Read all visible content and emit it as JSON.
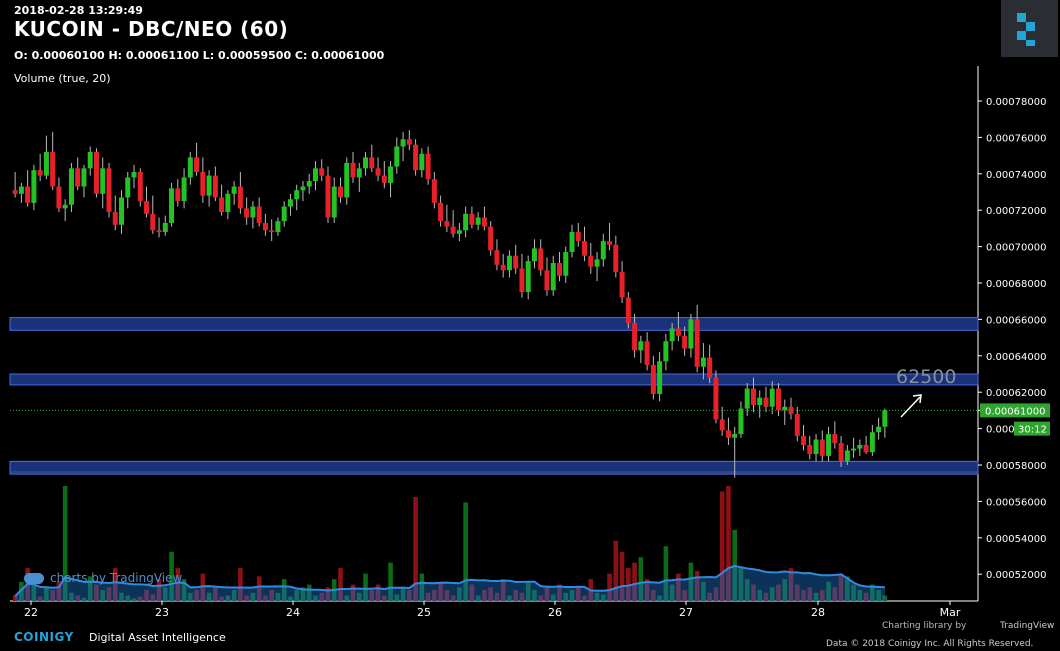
{
  "header": {
    "timestamp": "2018-02-28 13:29:49",
    "title": "KUCOIN - DBC/NEO (60)",
    "ohlc": "O: 0.00060100 H: 0.00061100 L: 0.00059500 C: 0.00061000",
    "volume_label": "Volume (true, 20)"
  },
  "watermark": "charts by TradingView",
  "footer": {
    "brand": "COINIGY",
    "tagline": "Digital Asset Intelligence",
    "charting_library": "Charting library by",
    "tradingview": "TradingView",
    "copyright": "Data © 2018  Coinigy Inc. All Rights Reserved."
  },
  "colors": {
    "up": "#22c322",
    "down": "#e8202a",
    "band": "#1f3b8f",
    "volume_ma": "#1c6fc4",
    "last_price_tag": "#2fa52f"
  },
  "icons": {
    "brand_logo": "coinigy-logo-icon",
    "arrow": "arrow-up-right-icon"
  },
  "chart_data": {
    "type": "candlestick",
    "y_ticks": [
      "0.00078000",
      "0.00076000",
      "0.00074000",
      "0.00072000",
      "0.00070000",
      "0.00068000",
      "0.00066000",
      "0.00064000",
      "0.00062000",
      "0.00061000",
      "0.00060000",
      "0.00058000",
      "0.00056000",
      "0.00054000",
      "0.00052000"
    ],
    "x_ticks": [
      "22",
      "23",
      "24",
      "25",
      "26",
      "27",
      "28",
      "Mar"
    ],
    "last_price": "0.00061000",
    "countdown": "30:12",
    "annotation": "62500",
    "price_range": [
      0.00051,
      0.000793
    ],
    "zones": [
      {
        "low": 0.000654,
        "high": 0.000661
      },
      {
        "low": 0.000624,
        "high": 0.00063
      },
      {
        "low": 0.000575,
        "high": 0.000582
      }
    ],
    "candles": [
      [
        0.000731,
        0.000741,
        0.000727,
        0.000729
      ],
      [
        0.000729,
        0.000735,
        0.000724,
        0.000733
      ],
      [
        0.000733,
        0.000742,
        0.000722,
        0.000724
      ],
      [
        0.000724,
        0.000745,
        0.00072,
        0.000742
      ],
      [
        0.000742,
        0.000751,
        0.000736,
        0.000739
      ],
      [
        0.000739,
        0.000761,
        0.000737,
        0.000752
      ],
      [
        0.000752,
        0.000763,
        0.000731,
        0.000733
      ],
      [
        0.000733,
        0.000738,
        0.000719,
        0.000721
      ],
      [
        0.000721,
        0.000726,
        0.000714,
        0.000723
      ],
      [
        0.000723,
        0.000746,
        0.000719,
        0.000743
      ],
      [
        0.000743,
        0.000749,
        0.000731,
        0.000733
      ],
      [
        0.000733,
        0.000745,
        0.000727,
        0.000743
      ],
      [
        0.000743,
        0.000755,
        0.000739,
        0.000752
      ],
      [
        0.000752,
        0.000754,
        0.000727,
        0.000729
      ],
      [
        0.000729,
        0.000749,
        0.000721,
        0.000743
      ],
      [
        0.000743,
        0.000746,
        0.000716,
        0.000719
      ],
      [
        0.000719,
        0.000728,
        0.000709,
        0.000712
      ],
      [
        0.000712,
        0.000731,
        0.000707,
        0.000727
      ],
      [
        0.000727,
        0.000741,
        0.000721,
        0.000738
      ],
      [
        0.000738,
        0.000745,
        0.000732,
        0.000741
      ],
      [
        0.000741,
        0.000743,
        0.000722,
        0.000725
      ],
      [
        0.000725,
        0.000733,
        0.000716,
        0.000718
      ],
      [
        0.000718,
        0.000728,
        0.000707,
        0.000709
      ],
      [
        0.000709,
        0.000716,
        0.000705,
        0.000708
      ],
      [
        0.000708,
        0.000717,
        0.000706,
        0.000713
      ],
      [
        0.000713,
        0.000735,
        0.000711,
        0.000732
      ],
      [
        0.000732,
        0.000737,
        0.000722,
        0.000725
      ],
      [
        0.000725,
        0.000743,
        0.000721,
        0.000738
      ],
      [
        0.000738,
        0.000752,
        0.000734,
        0.000749
      ],
      [
        0.000749,
        0.000757,
        0.000739,
        0.000741
      ],
      [
        0.000741,
        0.000749,
        0.000724,
        0.000728
      ],
      [
        0.000728,
        0.000742,
        0.000722,
        0.000739
      ],
      [
        0.000739,
        0.000744,
        0.000725,
        0.000727
      ],
      [
        0.000727,
        0.000734,
        0.000717,
        0.000719
      ],
      [
        0.000719,
        0.000731,
        0.000715,
        0.000729
      ],
      [
        0.000729,
        0.000736,
        0.000723,
        0.000733
      ],
      [
        0.000733,
        0.000741,
        0.000718,
        0.000721
      ],
      [
        0.000721,
        0.000727,
        0.000712,
        0.000716
      ],
      [
        0.000716,
        0.000725,
        0.00071,
        0.000722
      ],
      [
        0.000722,
        0.000727,
        0.000711,
        0.000713
      ],
      [
        0.000713,
        0.000718,
        0.000706,
        0.000709
      ],
      [
        0.000709,
        0.000715,
        0.000703,
        0.000708
      ],
      [
        0.000708,
        0.000716,
        0.000706,
        0.000714
      ],
      [
        0.000714,
        0.000725,
        0.000711,
        0.000722
      ],
      [
        0.000722,
        0.000729,
        0.000717,
        0.000726
      ],
      [
        0.000726,
        0.000734,
        0.00072,
        0.000731
      ],
      [
        0.000731,
        0.000736,
        0.000725,
        0.000733
      ],
      [
        0.000733,
        0.00074,
        0.000729,
        0.000736
      ],
      [
        0.000736,
        0.000747,
        0.000731,
        0.000743
      ],
      [
        0.000743,
        0.000748,
        0.000736,
        0.000739
      ],
      [
        0.000739,
        0.000744,
        0.000713,
        0.000716
      ],
      [
        0.000716,
        0.000738,
        0.000713,
        0.000733
      ],
      [
        0.000733,
        0.000738,
        0.000724,
        0.000727
      ],
      [
        0.000727,
        0.000749,
        0.000723,
        0.000746
      ],
      [
        0.000746,
        0.000752,
        0.000735,
        0.000738
      ],
      [
        0.000738,
        0.000746,
        0.00073,
        0.000743
      ],
      [
        0.000743,
        0.000752,
        0.000739,
        0.000749
      ],
      [
        0.000749,
        0.000756,
        0.000741,
        0.000743
      ],
      [
        0.000743,
        0.000749,
        0.000736,
        0.000739
      ],
      [
        0.000739,
        0.000747,
        0.000732,
        0.000735
      ],
      [
        0.000735,
        0.000747,
        0.000727,
        0.000744
      ],
      [
        0.000744,
        0.00076,
        0.00074,
        0.000755
      ],
      [
        0.000755,
        0.000763,
        0.000747,
        0.000759
      ],
      [
        0.000759,
        0.000764,
        0.000753,
        0.000756
      ],
      [
        0.000756,
        0.000759,
        0.000739,
        0.000742
      ],
      [
        0.000742,
        0.000754,
        0.000738,
        0.000751
      ],
      [
        0.000751,
        0.000755,
        0.000734,
        0.000737
      ],
      [
        0.000737,
        0.000741,
        0.000721,
        0.000724
      ],
      [
        0.000724,
        0.000728,
        0.000711,
        0.000714
      ],
      [
        0.000714,
        0.000723,
        0.000708,
        0.000711
      ],
      [
        0.000711,
        0.00072,
        0.000705,
        0.000707
      ],
      [
        0.000707,
        0.000713,
        0.000703,
        0.000709
      ],
      [
        0.000709,
        0.000722,
        0.000705,
        0.000718
      ],
      [
        0.000718,
        0.000722,
        0.00071,
        0.000712
      ],
      [
        0.000712,
        0.000719,
        0.000709,
        0.000716
      ],
      [
        0.000716,
        0.000722,
        0.000709,
        0.000711
      ],
      [
        0.000711,
        0.000714,
        0.000695,
        0.000698
      ],
      [
        0.000698,
        0.000704,
        0.000687,
        0.00069
      ],
      [
        0.00069,
        0.000696,
        0.000683,
        0.000687
      ],
      [
        0.000687,
        0.000698,
        0.000683,
        0.000695
      ],
      [
        0.000695,
        0.000701,
        0.000685,
        0.000688
      ],
      [
        0.000688,
        0.000696,
        0.000672,
        0.000675
      ],
      [
        0.000675,
        0.000695,
        0.000671,
        0.000692
      ],
      [
        0.000692,
        0.000704,
        0.000688,
        0.000699
      ],
      [
        0.000699,
        0.000704,
        0.000684,
        0.000687
      ],
      [
        0.000687,
        0.000694,
        0.000673,
        0.000676
      ],
      [
        0.000676,
        0.000695,
        0.000673,
        0.000691
      ],
      [
        0.000691,
        0.000697,
        0.000681,
        0.000684
      ],
      [
        0.000684,
        0.0007,
        0.00068,
        0.000697
      ],
      [
        0.000697,
        0.000712,
        0.000694,
        0.000708
      ],
      [
        0.000708,
        0.000713,
        0.0007,
        0.000703
      ],
      [
        0.000703,
        0.000711,
        0.000692,
        0.000695
      ],
      [
        0.000695,
        0.000702,
        0.000685,
        0.000689
      ],
      [
        0.000689,
        0.000697,
        0.000681,
        0.000693
      ],
      [
        0.000693,
        0.000707,
        0.000689,
        0.000703
      ],
      [
        0.000703,
        0.000713,
        0.000698,
        0.000701
      ],
      [
        0.000701,
        0.000706,
        0.000683,
        0.000686
      ],
      [
        0.000686,
        0.000692,
        0.000669,
        0.000672
      ],
      [
        0.000672,
        0.000675,
        0.000655,
        0.000658
      ],
      [
        0.000658,
        0.000663,
        0.000639,
        0.000643
      ],
      [
        0.000643,
        0.000651,
        0.000636,
        0.000648
      ],
      [
        0.000648,
        0.000653,
        0.000632,
        0.000635
      ],
      [
        0.000635,
        0.00064,
        0.000616,
        0.000619
      ],
      [
        0.000619,
        0.000642,
        0.000615,
        0.000637
      ],
      [
        0.000637,
        0.000652,
        0.000632,
        0.000648
      ],
      [
        0.000648,
        0.000658,
        0.000643,
        0.000655
      ],
      [
        0.000655,
        0.000664,
        0.000648,
        0.000651
      ],
      [
        0.000651,
        0.000656,
        0.00064,
        0.000644
      ],
      [
        0.000644,
        0.000663,
        0.000639,
        0.00066
      ],
      [
        0.00066,
        0.000668,
        0.000631,
        0.000634
      ],
      [
        0.000634,
        0.000647,
        0.000627,
        0.000639
      ],
      [
        0.000639,
        0.000646,
        0.000625,
        0.000628
      ],
      [
        0.000628,
        0.000632,
        0.000603,
        0.000605
      ],
      [
        0.000605,
        0.000612,
        0.000596,
        0.000599
      ],
      [
        0.000599,
        0.000606,
        0.000591,
        0.000595
      ],
      [
        0.000595,
        0.000601,
        0.000573,
        0.000597
      ],
      [
        0.000597,
        0.000615,
        0.000595,
        0.000611
      ],
      [
        0.000611,
        0.000625,
        0.000607,
        0.000622
      ],
      [
        0.000622,
        0.000628,
        0.000609,
        0.000613
      ],
      [
        0.000613,
        0.000621,
        0.000606,
        0.000617
      ],
      [
        0.000617,
        0.000623,
        0.000609,
        0.000612
      ],
      [
        0.000612,
        0.000626,
        0.000608,
        0.000622
      ],
      [
        0.000622,
        0.000625,
        0.000607,
        0.00061
      ],
      [
        0.00061,
        0.000616,
        0.000602,
        0.000612
      ],
      [
        0.000612,
        0.000617,
        0.000605,
        0.000608
      ],
      [
        0.000608,
        0.000612,
        0.000593,
        0.000596
      ],
      [
        0.000596,
        0.000602,
        0.000588,
        0.000591
      ],
      [
        0.000591,
        0.000596,
        0.000583,
        0.000586
      ],
      [
        0.000586,
        0.000597,
        0.000582,
        0.000594
      ],
      [
        0.000594,
        0.000599,
        0.000582,
        0.000585
      ],
      [
        0.000585,
        0.000601,
        0.000582,
        0.000597
      ],
      [
        0.000597,
        0.000604,
        0.000589,
        0.000592
      ],
      [
        0.000592,
        0.000596,
        0.000579,
        0.000582
      ],
      [
        0.000582,
        0.000591,
        0.00058,
        0.000588
      ],
      [
        0.000588,
        0.000595,
        0.000584,
        0.000589
      ],
      [
        0.000589,
        0.000594,
        0.000585,
        0.000591
      ],
      [
        0.000591,
        0.000596,
        0.000586,
        0.000587
      ],
      [
        0.000587,
        0.000602,
        0.000585,
        0.000598
      ],
      [
        0.000598,
        0.000606,
        0.000594,
        0.000601
      ],
      [
        0.000601,
        0.000611,
        0.000595,
        0.00061
      ]
    ],
    "volumes": [
      10,
      35,
      60,
      30,
      8,
      25,
      20,
      36,
      210,
      15,
      10,
      6,
      45,
      30,
      20,
      25,
      60,
      15,
      10,
      5,
      8,
      20,
      12,
      40,
      25,
      90,
      60,
      40,
      15,
      20,
      50,
      15,
      25,
      8,
      10,
      20,
      60,
      10,
      15,
      45,
      10,
      20,
      15,
      40,
      8,
      20,
      25,
      30,
      10,
      15,
      25,
      40,
      60,
      10,
      30,
      15,
      50,
      20,
      30,
      10,
      70,
      12,
      25,
      20,
      190,
      50,
      15,
      20,
      35,
      20,
      10,
      25,
      180,
      30,
      10,
      20,
      25,
      15,
      40,
      10,
      20,
      15,
      35,
      20,
      10,
      25,
      12,
      30,
      15,
      20,
      25,
      10,
      40,
      15,
      12,
      50,
      110,
      90,
      60,
      70,
      80,
      40,
      20,
      10,
      100,
      30,
      50,
      20,
      70,
      55,
      35,
      15,
      25,
      200,
      210,
      130,
      60,
      40,
      30,
      20,
      15,
      25,
      30,
      40,
      60,
      30,
      20,
      25,
      15,
      20,
      35,
      25,
      50,
      45,
      30,
      20,
      15,
      30,
      20,
      10
    ]
  }
}
